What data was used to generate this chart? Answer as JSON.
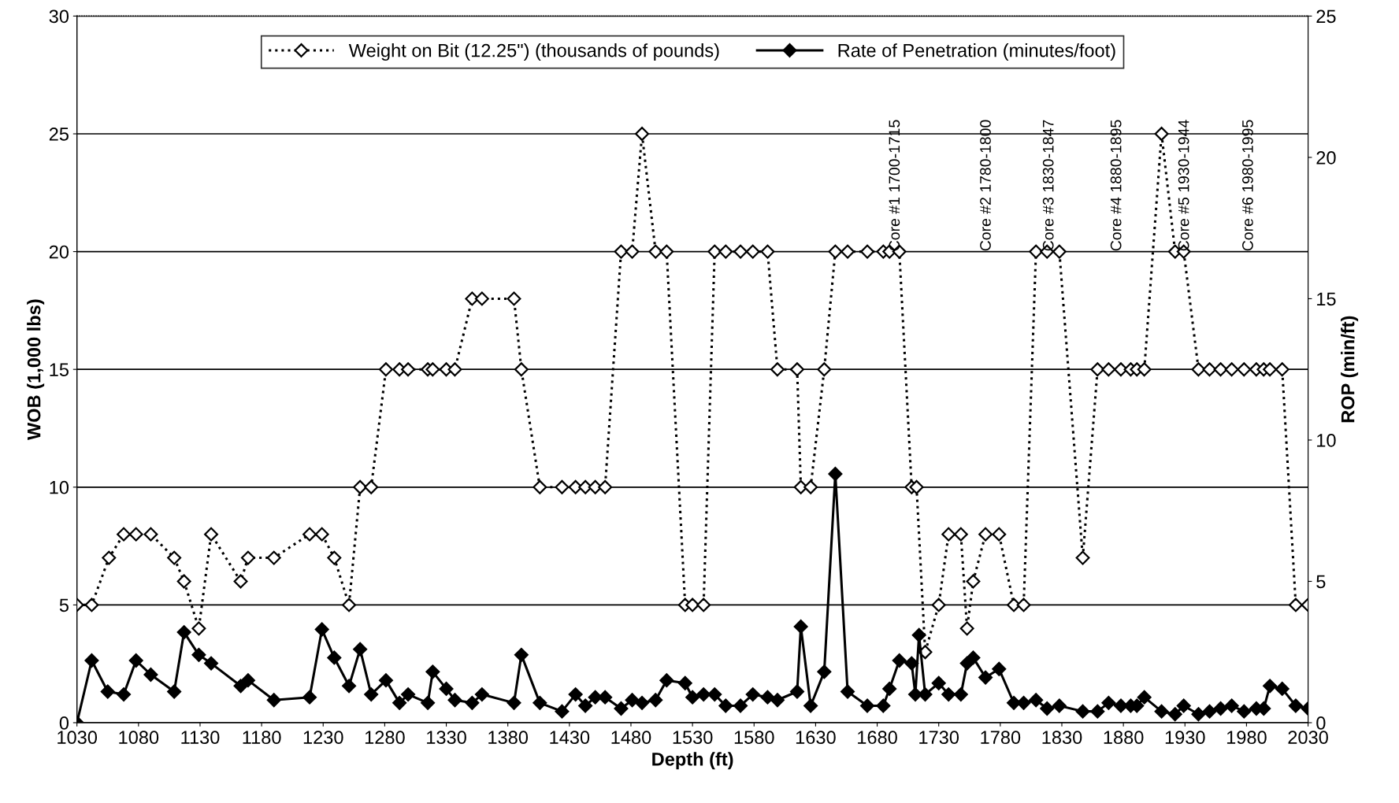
{
  "chart_data": {
    "type": "line",
    "xlabel": "Depth (ft)",
    "ylabel": "WOB (1,000 lbs)",
    "y2label": "ROP (min/ft)",
    "xlim": [
      1030,
      2030
    ],
    "xticks": [
      1030,
      1080,
      1130,
      1180,
      1230,
      1280,
      1330,
      1380,
      1430,
      1480,
      1530,
      1580,
      1630,
      1680,
      1730,
      1780,
      1830,
      1880,
      1930,
      1980,
      2030
    ],
    "ylim": [
      0,
      30
    ],
    "yticks": [
      0,
      5,
      10,
      15,
      20,
      25,
      30
    ],
    "y2lim": [
      0,
      25
    ],
    "y2ticks": [
      0,
      5,
      10,
      15,
      20,
      25
    ],
    "grid": "y",
    "legend": "top",
    "marker": "diamond",
    "series": [
      {
        "name": "Weight on Bit (12.25\") (thousands of pounds)",
        "color": "#000000",
        "line_style": "dotted",
        "x": [
          1030,
          1042,
          1056,
          1068,
          1078,
          1090,
          1109,
          1117,
          1129,
          1139,
          1163,
          1169,
          1190,
          1219,
          1229,
          1239,
          1251,
          1260,
          1269,
          1281,
          1292,
          1299,
          1315,
          1319,
          1330,
          1337,
          1351,
          1359,
          1385,
          1391,
          1406,
          1424,
          1435,
          1443,
          1451,
          1459,
          1472,
          1481,
          1489,
          1500,
          1509,
          1524,
          1530,
          1539,
          1548,
          1557,
          1569,
          1579,
          1591,
          1599,
          1615,
          1618,
          1626,
          1637,
          1646,
          1656,
          1672,
          1685,
          1690,
          1698,
          1708,
          1712,
          1719,
          1730,
          1738,
          1748,
          1753,
          1758,
          1768,
          1779,
          1791,
          1799,
          1809,
          1818,
          1828,
          1847,
          1859,
          1868,
          1878,
          1886,
          1891,
          1897,
          1911,
          1922,
          1929,
          1941,
          1950,
          1959,
          1968,
          1978,
          1988,
          1994,
          1999,
          2009,
          2020,
          2030
        ],
        "values": [
          5,
          5,
          7,
          8,
          8,
          8,
          7,
          6,
          4,
          8,
          6,
          7,
          7,
          8,
          8,
          7,
          5,
          10,
          10,
          15,
          15,
          15,
          15,
          15,
          15,
          15,
          18,
          18,
          18,
          15,
          10,
          10,
          10,
          10,
          10,
          10,
          20,
          20,
          25,
          20,
          20,
          5,
          5,
          5,
          20,
          20,
          20,
          20,
          20,
          15,
          15,
          10,
          10,
          15,
          20,
          20,
          20,
          20,
          20,
          20,
          10,
          10,
          3,
          5,
          8,
          8,
          4,
          6,
          8,
          8,
          5,
          5,
          20,
          20,
          20,
          7,
          15,
          15,
          15,
          15,
          15,
          15,
          25,
          20,
          20,
          15,
          15,
          15,
          15,
          15,
          15,
          15,
          15,
          15,
          5,
          5
        ]
      },
      {
        "name": "Rate of Penetration (minutes/foot)",
        "color": "#000000",
        "line_style": "solid",
        "axis": "y2",
        "x": [
          1030,
          1042,
          1055,
          1068,
          1078,
          1090,
          1109,
          1117,
          1129,
          1139,
          1163,
          1169,
          1190,
          1219,
          1229,
          1239,
          1251,
          1260,
          1269,
          1281,
          1292,
          1299,
          1315,
          1319,
          1330,
          1337,
          1351,
          1359,
          1385,
          1391,
          1406,
          1424,
          1435,
          1443,
          1451,
          1459,
          1472,
          1481,
          1489,
          1500,
          1509,
          1524,
          1530,
          1539,
          1548,
          1557,
          1569,
          1579,
          1591,
          1599,
          1615,
          1618,
          1626,
          1637,
          1646,
          1656,
          1672,
          1685,
          1690,
          1698,
          1708,
          1711,
          1714,
          1719,
          1730,
          1738,
          1748,
          1753,
          1758,
          1768,
          1779,
          1791,
          1799,
          1809,
          1818,
          1828,
          1847,
          1859,
          1868,
          1878,
          1886,
          1891,
          1897,
          1911,
          1922,
          1929,
          1941,
          1950,
          1959,
          1968,
          1978,
          1988,
          1994,
          1999,
          2009,
          2020,
          2030
        ],
        "values": [
          0,
          2.2,
          1.1,
          1.0,
          2.2,
          1.7,
          1.1,
          3.2,
          2.4,
          2.1,
          1.3,
          1.5,
          0.8,
          0.9,
          3.3,
          2.3,
          1.3,
          2.6,
          1.0,
          1.5,
          0.7,
          1.0,
          0.7,
          1.8,
          1.2,
          0.8,
          0.7,
          1.0,
          0.7,
          2.4,
          0.7,
          0.4,
          1.0,
          0.6,
          0.9,
          0.9,
          0.5,
          0.8,
          0.7,
          0.8,
          1.5,
          1.4,
          0.9,
          1.0,
          1.0,
          0.6,
          0.6,
          1.0,
          0.9,
          0.8,
          1.1,
          3.4,
          0.6,
          1.8,
          8.8,
          1.1,
          0.6,
          0.6,
          1.2,
          2.2,
          2.1,
          1.0,
          3.1,
          1.0,
          1.4,
          1.0,
          1.0,
          2.1,
          2.3,
          1.6,
          1.9,
          0.7,
          0.7,
          0.8,
          0.5,
          0.6,
          0.4,
          0.4,
          0.7,
          0.6,
          0.6,
          0.6,
          0.9,
          0.4,
          0.3,
          0.6,
          0.3,
          0.4,
          0.5,
          0.6,
          0.4,
          0.5,
          0.5,
          1.3,
          1.2,
          0.6,
          0.5
        ]
      }
    ],
    "annotations": [
      "Core #1 1700-1715",
      "Core #2 1780-1800",
      "Core #3 1830-1847",
      "Core #4 1880-1895",
      "Core #5 1930-1944",
      "Core #6 1980-1995"
    ]
  }
}
